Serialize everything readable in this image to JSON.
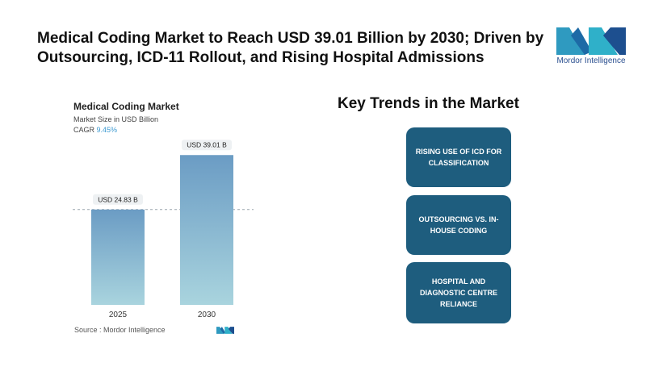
{
  "headline": "Medical Coding Market to Reach USD 39.01 Billion by 2030; Driven by Outsourcing, ICD-11 Rollout, and Rising Hospital Admissions",
  "logo": {
    "text": "Mordor Intelligence",
    "icon": "mordor-intelligence-logo"
  },
  "chart_header": {
    "title": "Medical Coding Market",
    "subtitle": "Market Size in USD Billion",
    "cagr_label": "CAGR",
    "cagr_value": "9.45%"
  },
  "chart_data": {
    "type": "bar",
    "title": "Medical Coding Market",
    "ylabel": "Market Size in USD Billion",
    "categories": [
      "2025",
      "2030"
    ],
    "values": [
      24.83,
      39.01
    ],
    "data_labels": [
      "USD 24.83 B",
      "USD 39.01 B"
    ],
    "ylim": [
      0,
      42
    ],
    "reference_line_value": 24.83,
    "grid": false,
    "bar_color_top": "#6b9cc4",
    "bar_color_bottom": "#a9d4de"
  },
  "source": "Source :  Mordor Intelligence",
  "trends": {
    "title": "Key Trends in the Market",
    "items": [
      "Rising use of ICD for classification",
      "Outsourcing vs. In-house Coding",
      "Hospital and Diagnostic Centre Reliance"
    ],
    "box_color": "#1e5d7e"
  }
}
